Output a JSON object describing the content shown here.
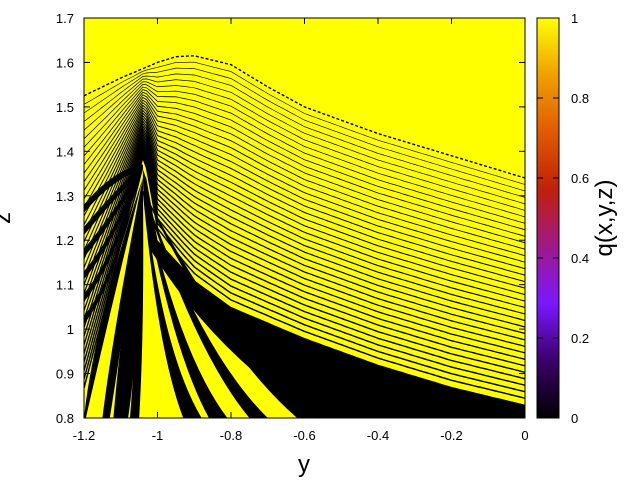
{
  "chart_data": {
    "type": "heatmap",
    "xlabel": "y",
    "ylabel": "z",
    "colorbar_label": "q(x,y,z)",
    "xlim": [
      -1.2,
      0
    ],
    "ylim": [
      0.8,
      1.7
    ],
    "clim": [
      0,
      1
    ],
    "xticks": [
      "-1.2",
      "-1",
      "-0.8",
      "-0.6",
      "-0.4",
      "-0.2",
      "0"
    ],
    "yticks": [
      "0.8",
      "0.9",
      "1",
      "1.1",
      "1.2",
      "1.3",
      "1.4",
      "1.5",
      "1.6",
      "1.7"
    ],
    "cticks": [
      "0",
      "0.2",
      "0.4",
      "0.6",
      "0.8",
      "1"
    ],
    "xtick_values": [
      -1.2,
      -1.0,
      -0.8,
      -0.6,
      -0.4,
      -0.2,
      0.0
    ],
    "ytick_values": [
      0.8,
      0.9,
      1.0,
      1.1,
      1.2,
      1.3,
      1.4,
      1.5,
      1.6,
      1.7
    ],
    "ctick_values": [
      0,
      0.2,
      0.4,
      0.6,
      0.8,
      1.0
    ],
    "colormap": [
      "#000000",
      "#3b0068",
      "#7a18ff",
      "#a0198a",
      "#c0200a",
      "#e05a00",
      "#f0a000",
      "#ffff00"
    ],
    "colors": {
      "high": "#ffff00",
      "low": "#000000"
    },
    "features": {
      "uniform_region_value": 1,
      "upper_boundary": {
        "y": [
          -1.2,
          -1.1,
          -1.0,
          -0.95,
          -0.9,
          -0.8,
          -0.7,
          -0.6,
          -0.5,
          -0.4,
          -0.3,
          -0.2,
          -0.1,
          0.0
        ],
        "z": [
          1.525,
          1.565,
          1.6,
          1.613,
          1.615,
          1.595,
          1.545,
          1.5,
          1.47,
          1.44,
          1.415,
          1.39,
          1.365,
          1.34
        ]
      },
      "cusp": {
        "y": -1.04,
        "z": 1.36
      },
      "black_lobe_edge": {
        "y": [
          -1.035,
          -1.0,
          -0.9,
          -0.8,
          -0.6,
          -0.4,
          -0.2,
          0.0
        ],
        "z": [
          1.36,
          1.2,
          1.11,
          1.05,
          0.98,
          0.92,
          0.87,
          0.83
        ]
      }
    }
  }
}
